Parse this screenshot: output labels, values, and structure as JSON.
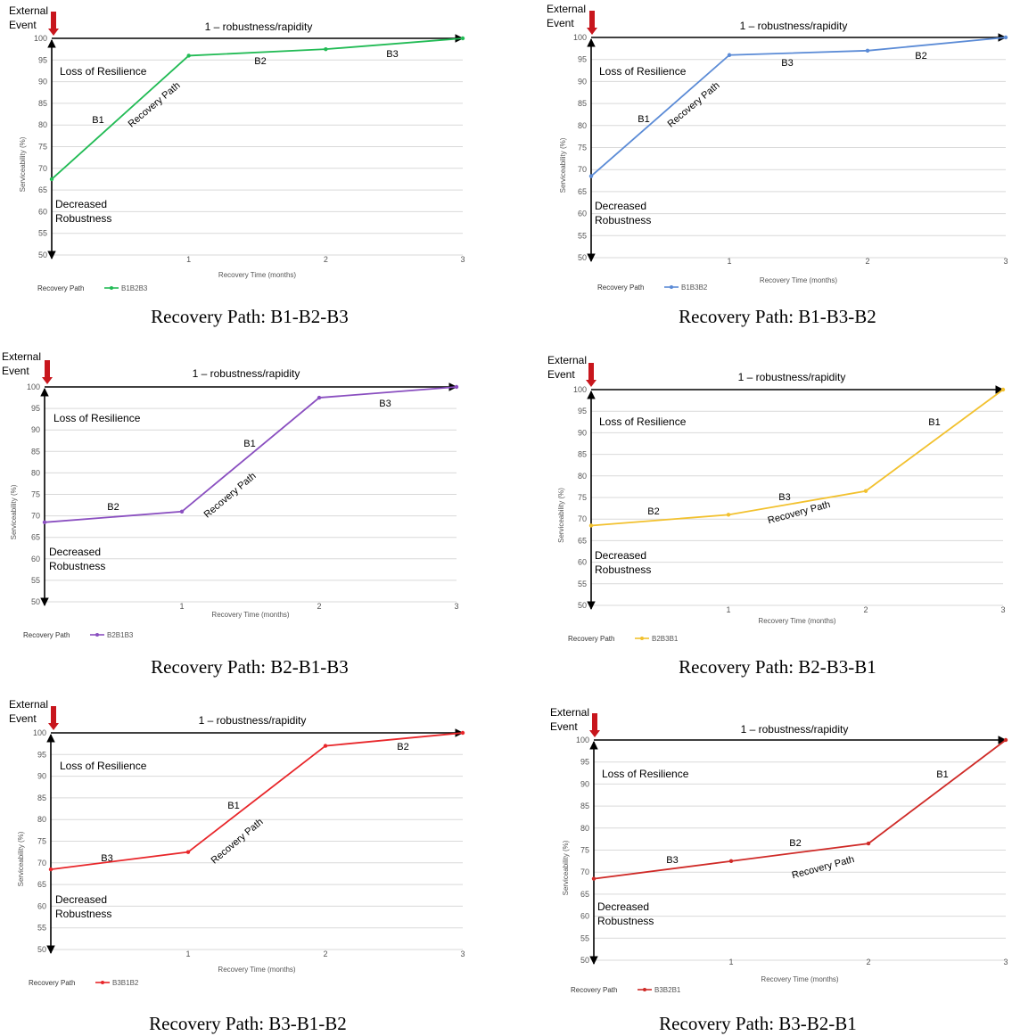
{
  "chart_data": [
    {
      "type": "line",
      "title": "1 – robustness/rapidity",
      "caption": "Recovery Path: B1-B2-B3",
      "event_label": [
        "External",
        "Event"
      ],
      "ylabel": "Serviceability (%)",
      "xlabel": "Recovery Time (months)",
      "yticks": [
        50,
        55,
        60,
        65,
        70,
        75,
        80,
        85,
        90,
        95,
        100
      ],
      "xticks": [
        1,
        2,
        3
      ],
      "ylim": [
        50,
        100
      ],
      "xlim": [
        0,
        3
      ],
      "annotations": {
        "loss": "Loss of Resilience",
        "decreased": [
          "Decreased",
          "Robustness"
        ],
        "path": "Recovery Path",
        "segments": [
          "B1",
          "B2",
          "B3"
        ]
      },
      "legend_title": "Recovery Path",
      "series": [
        {
          "name": "B1B2B3",
          "color": "#22bb55",
          "x": [
            0,
            1,
            2,
            3
          ],
          "y": [
            67.5,
            96,
            97.5,
            100
          ]
        }
      ]
    },
    {
      "type": "line",
      "title": "1 – robustness/rapidity",
      "caption": "Recovery Path: B1-B3-B2",
      "event_label": [
        "External",
        "Event"
      ],
      "ylabel": "Serviceability (%)",
      "xlabel": "Recovery Time (months)",
      "yticks": [
        50,
        55,
        60,
        65,
        70,
        75,
        80,
        85,
        90,
        95,
        100
      ],
      "xticks": [
        1,
        2,
        3
      ],
      "ylim": [
        50,
        100
      ],
      "xlim": [
        0,
        3
      ],
      "annotations": {
        "loss": "Loss of Resilience",
        "decreased": [
          "Decreased",
          "Robustness"
        ],
        "path": "Recovery Path",
        "segments": [
          "B1",
          "B3",
          "B2"
        ]
      },
      "legend_title": "Recovery Path",
      "series": [
        {
          "name": "B1B3B2",
          "color": "#5b8bd6",
          "x": [
            0,
            1,
            2,
            3
          ],
          "y": [
            68.5,
            96,
            97,
            100
          ]
        }
      ]
    },
    {
      "type": "line",
      "title": "1 – robustness/rapidity",
      "caption": "Recovery Path: B2-B1-B3",
      "event_label": [
        "External",
        "Event"
      ],
      "ylabel": "Serviceability (%)",
      "xlabel": "Recovery Time (months)",
      "yticks": [
        50,
        55,
        60,
        65,
        70,
        75,
        80,
        85,
        90,
        95,
        100
      ],
      "xticks": [
        1,
        2,
        3
      ],
      "ylim": [
        50,
        100
      ],
      "xlim": [
        0,
        3
      ],
      "annotations": {
        "loss": "Loss of Resilience",
        "decreased": [
          "Decreased",
          "Robustness"
        ],
        "path": "Recovery Path",
        "segments": [
          "B2",
          "B1",
          "B3"
        ]
      },
      "legend_title": "Recovery Path",
      "series": [
        {
          "name": "B2B1B3",
          "color": "#8a4fc0",
          "x": [
            0,
            1,
            2,
            3
          ],
          "y": [
            68.5,
            71,
            97.5,
            100
          ]
        }
      ]
    },
    {
      "type": "line",
      "title": "1 – robustness/rapidity",
      "caption": "Recovery Path: B2-B3-B1",
      "event_label": [
        "External",
        "Event"
      ],
      "ylabel": "Serviceability (%)",
      "xlabel": "Recovery Time (months)",
      "yticks": [
        50,
        55,
        60,
        65,
        70,
        75,
        80,
        85,
        90,
        95,
        100
      ],
      "xticks": [
        1,
        2,
        3
      ],
      "ylim": [
        50,
        100
      ],
      "xlim": [
        0,
        3
      ],
      "annotations": {
        "loss": "Loss of Resilience",
        "decreased": [
          "Decreased",
          "Robustness"
        ],
        "path": "Recovery Path",
        "segments": [
          "B2",
          "B3",
          "B1"
        ]
      },
      "legend_title": "Recovery Path",
      "series": [
        {
          "name": "B2B3B1",
          "color": "#f2c12e",
          "x": [
            0,
            1,
            2,
            3
          ],
          "y": [
            68.5,
            71,
            76.5,
            100
          ]
        }
      ]
    },
    {
      "type": "line",
      "title": "1 – robustness/rapidity",
      "caption": "Recovery Path: B3-B1-B2",
      "event_label": [
        "External",
        "Event"
      ],
      "ylabel": "Serviceability (%)",
      "xlabel": "Recovery Time (months)",
      "yticks": [
        50,
        55,
        60,
        65,
        70,
        75,
        80,
        85,
        90,
        95,
        100
      ],
      "xticks": [
        1,
        2,
        3
      ],
      "ylim": [
        50,
        100
      ],
      "xlim": [
        0,
        3
      ],
      "annotations": {
        "loss": "Loss of Resilience",
        "decreased": [
          "Decreased",
          "Robustness"
        ],
        "path": "Recovery Path",
        "segments": [
          "B3",
          "B1",
          "B2"
        ]
      },
      "legend_title": "Recovery Path",
      "series": [
        {
          "name": "B3B1B2",
          "color": "#e8262a",
          "x": [
            0,
            1,
            2,
            3
          ],
          "y": [
            68.5,
            72.5,
            97,
            100
          ]
        }
      ]
    },
    {
      "type": "line",
      "title": "1 – robustness/rapidity",
      "caption": "Recovery Path: B3-B2-B1",
      "event_label": [
        "External",
        "Event"
      ],
      "ylabel": "Serviceability (%)",
      "xlabel": "Recovery Time (months)",
      "yticks": [
        50,
        55,
        60,
        65,
        70,
        75,
        80,
        85,
        90,
        95,
        100
      ],
      "xticks": [
        1,
        2,
        3
      ],
      "ylim": [
        50,
        100
      ],
      "xlim": [
        0,
        3
      ],
      "annotations": {
        "loss": "Loss of Resilience",
        "decreased": [
          "Decreased",
          "Robustness"
        ],
        "path": "Recovery Path",
        "segments": [
          "B3",
          "B2",
          "B1"
        ]
      },
      "legend_title": "Recovery Path",
      "series": [
        {
          "name": "B3B2B1",
          "color": "#cf2a27",
          "x": [
            0,
            1,
            2,
            3
          ],
          "y": [
            68.5,
            72.5,
            76.5,
            100
          ]
        }
      ]
    }
  ]
}
